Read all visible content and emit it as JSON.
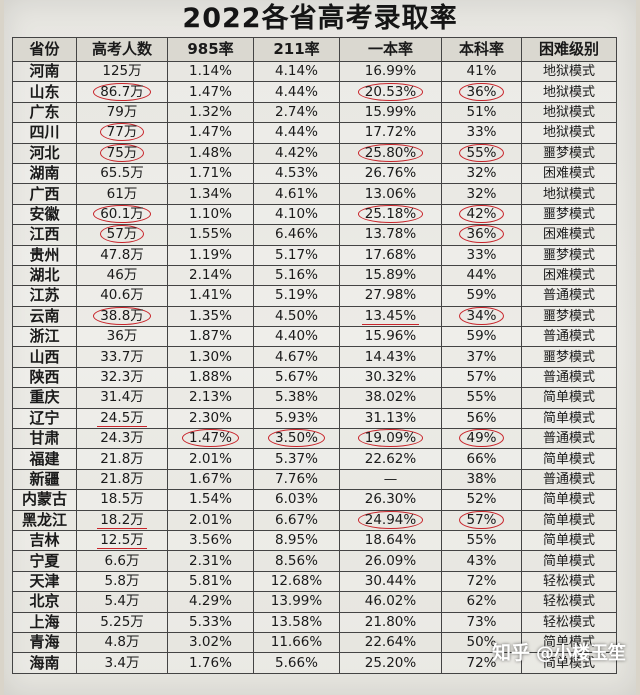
{
  "title": "2022各省高考录取率",
  "headers": [
    "省份",
    "高考人数",
    "985率",
    "211率",
    "一本率",
    "本科率",
    "困难级别"
  ],
  "rows": [
    [
      "河南",
      "125万",
      "1.14%",
      "4.14%",
      "16.99%",
      "41%",
      "地狱模式"
    ],
    [
      "山东",
      "86.7万",
      "1.47%",
      "4.44%",
      "20.53%",
      "36%",
      "地狱模式"
    ],
    [
      "广东",
      "79万",
      "1.32%",
      "2.74%",
      "15.99%",
      "51%",
      "地狱模式"
    ],
    [
      "四川",
      "77万",
      "1.47%",
      "4.44%",
      "17.72%",
      "33%",
      "地狱模式"
    ],
    [
      "河北",
      "75万",
      "1.48%",
      "4.42%",
      "25.80%",
      "55%",
      "噩梦模式"
    ],
    [
      "湖南",
      "65.5万",
      "1.71%",
      "4.53%",
      "26.76%",
      "32%",
      "困难模式"
    ],
    [
      "广西",
      "61万",
      "1.34%",
      "4.61%",
      "13.06%",
      "32%",
      "地狱模式"
    ],
    [
      "安徽",
      "60.1万",
      "1.10%",
      "4.10%",
      "25.18%",
      "42%",
      "噩梦模式"
    ],
    [
      "江西",
      "57万",
      "1.55%",
      "6.46%",
      "13.78%",
      "36%",
      "困难模式"
    ],
    [
      "贵州",
      "47.8万",
      "1.19%",
      "5.17%",
      "17.68%",
      "33%",
      "噩梦模式"
    ],
    [
      "湖北",
      "46万",
      "2.14%",
      "5.16%",
      "15.89%",
      "44%",
      "困难模式"
    ],
    [
      "江苏",
      "40.6万",
      "1.41%",
      "5.19%",
      "27.98%",
      "59%",
      "普通模式"
    ],
    [
      "云南",
      "38.8万",
      "1.35%",
      "4.50%",
      "13.45%",
      "34%",
      "噩梦模式"
    ],
    [
      "浙江",
      "36万",
      "1.87%",
      "4.40%",
      "15.96%",
      "59%",
      "普通模式"
    ],
    [
      "山西",
      "33.7万",
      "1.30%",
      "4.67%",
      "14.43%",
      "37%",
      "噩梦模式"
    ],
    [
      "陕西",
      "32.3万",
      "1.88%",
      "5.67%",
      "30.32%",
      "57%",
      "普通模式"
    ],
    [
      "重庆",
      "31.4万",
      "2.13%",
      "5.38%",
      "38.02%",
      "55%",
      "简单模式"
    ],
    [
      "辽宁",
      "24.5万",
      "2.30%",
      "5.93%",
      "31.13%",
      "56%",
      "简单模式"
    ],
    [
      "甘肃",
      "24.3万",
      "1.47%",
      "3.50%",
      "19.09%",
      "49%",
      "普通模式"
    ],
    [
      "福建",
      "21.8万",
      "2.01%",
      "5.37%",
      "22.62%",
      "66%",
      "简单模式"
    ],
    [
      "新疆",
      "21.8万",
      "1.67%",
      "7.76%",
      "—",
      "38%",
      "普通模式"
    ],
    [
      "内蒙古",
      "18.5万",
      "1.54%",
      "6.03%",
      "26.30%",
      "52%",
      "简单模式"
    ],
    [
      "黑龙江",
      "18.2万",
      "2.01%",
      "6.67%",
      "24.94%",
      "57%",
      "简单模式"
    ],
    [
      "吉林",
      "12.5万",
      "3.56%",
      "8.95%",
      "18.64%",
      "55%",
      "简单模式"
    ],
    [
      "宁夏",
      "6.6万",
      "2.31%",
      "8.56%",
      "26.09%",
      "43%",
      "简单模式"
    ],
    [
      "天津",
      "5.8万",
      "5.81%",
      "12.68%",
      "30.44%",
      "72%",
      "轻松模式"
    ],
    [
      "北京",
      "5.4万",
      "4.29%",
      "13.99%",
      "46.02%",
      "62%",
      "轻松模式"
    ],
    [
      "上海",
      "5.25万",
      "5.33%",
      "13.58%",
      "21.80%",
      "73%",
      "轻松模式"
    ],
    [
      "青海",
      "4.8万",
      "3.02%",
      "11.66%",
      "22.64%",
      "50%",
      "简单模式"
    ],
    [
      "海南",
      "3.4万",
      "1.76%",
      "5.66%",
      "25.20%",
      "72%",
      "简单模式"
    ]
  ],
  "marks": {
    "circled": [
      [
        1,
        1
      ],
      [
        3,
        1
      ],
      [
        4,
        1
      ],
      [
        7,
        1
      ],
      [
        8,
        1
      ],
      [
        12,
        1
      ],
      [
        1,
        4
      ],
      [
        4,
        4
      ],
      [
        7,
        4
      ],
      [
        18,
        4
      ],
      [
        22,
        4
      ],
      [
        1,
        5
      ],
      [
        4,
        5
      ],
      [
        7,
        5
      ],
      [
        8,
        5
      ],
      [
        12,
        5
      ],
      [
        18,
        5
      ],
      [
        22,
        5
      ],
      [
        18,
        2
      ],
      [
        18,
        3
      ]
    ],
    "underlined": [
      [
        17,
        1
      ],
      [
        22,
        1
      ],
      [
        23,
        1
      ],
      [
        12,
        4
      ]
    ],
    "accent_color": "#c8252b"
  },
  "watermark": {
    "brand": "知乎",
    "author": "@小楼玉笙"
  }
}
